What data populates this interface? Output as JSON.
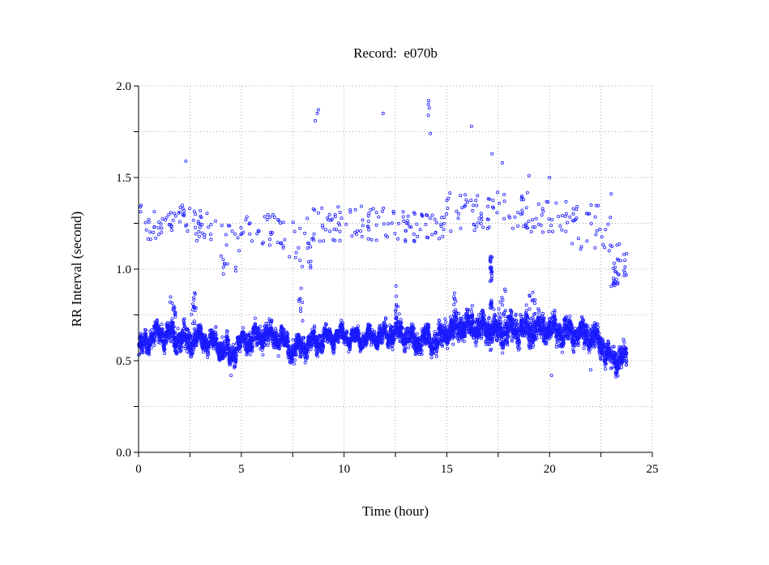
{
  "chart_data": {
    "type": "scatter",
    "title": "Record:  e070b",
    "xlabel": "Time (hour)",
    "ylabel": "RR Interval (second)",
    "xlim": [
      0,
      25
    ],
    "ylim": [
      0.0,
      2.0
    ],
    "xticks": [
      0,
      5,
      10,
      15,
      20,
      25
    ],
    "xtick_labels": [
      "0",
      "5",
      "10",
      "15",
      "20",
      "25"
    ],
    "xminor_step": 2.5,
    "yticks": [
      0.0,
      0.5,
      1.0,
      1.5,
      2.0
    ],
    "ytick_labels": [
      "0.0",
      "0.5",
      "1.0",
      "1.5",
      "2.0"
    ],
    "yminor_step": 0.25,
    "grid": true,
    "marker": "open-circle",
    "color": "#1a1aff",
    "series": [
      {
        "name": "RR intervals",
        "main_band_profile": [
          [
            0,
            0.55,
            0.05
          ],
          [
            0.5,
            0.62,
            0.05
          ],
          [
            1,
            0.65,
            0.05
          ],
          [
            1.5,
            0.64,
            0.05
          ],
          [
            2,
            0.62,
            0.06
          ],
          [
            2.5,
            0.6,
            0.07
          ],
          [
            3,
            0.62,
            0.05
          ],
          [
            3.5,
            0.6,
            0.05
          ],
          [
            4,
            0.58,
            0.06
          ],
          [
            4.5,
            0.53,
            0.06
          ],
          [
            5,
            0.6,
            0.05
          ],
          [
            5.5,
            0.62,
            0.06
          ],
          [
            6,
            0.64,
            0.06
          ],
          [
            6.5,
            0.64,
            0.05
          ],
          [
            7,
            0.62,
            0.05
          ],
          [
            7.5,
            0.55,
            0.06
          ],
          [
            8,
            0.58,
            0.05
          ],
          [
            8.5,
            0.6,
            0.05
          ],
          [
            9,
            0.62,
            0.05
          ],
          [
            9.5,
            0.63,
            0.04
          ],
          [
            10,
            0.64,
            0.04
          ],
          [
            10.5,
            0.62,
            0.04
          ],
          [
            11,
            0.62,
            0.04
          ],
          [
            11.5,
            0.63,
            0.04
          ],
          [
            12,
            0.64,
            0.05
          ],
          [
            12.5,
            0.66,
            0.06
          ],
          [
            13,
            0.64,
            0.05
          ],
          [
            13.5,
            0.6,
            0.06
          ],
          [
            14,
            0.62,
            0.05
          ],
          [
            14.5,
            0.6,
            0.06
          ],
          [
            15,
            0.66,
            0.07
          ],
          [
            15.5,
            0.68,
            0.08
          ],
          [
            16,
            0.7,
            0.07
          ],
          [
            16.5,
            0.68,
            0.07
          ],
          [
            17,
            0.68,
            0.08
          ],
          [
            17.5,
            0.66,
            0.07
          ],
          [
            18,
            0.68,
            0.08
          ],
          [
            18.5,
            0.67,
            0.07
          ],
          [
            19,
            0.66,
            0.08
          ],
          [
            19.5,
            0.68,
            0.07
          ],
          [
            20,
            0.68,
            0.06
          ],
          [
            20.5,
            0.65,
            0.07
          ],
          [
            21,
            0.66,
            0.06
          ],
          [
            21.5,
            0.65,
            0.06
          ],
          [
            22,
            0.64,
            0.06
          ],
          [
            22.5,
            0.6,
            0.07
          ],
          [
            23,
            0.5,
            0.06
          ],
          [
            23.5,
            0.53,
            0.06
          ],
          [
            23.75,
            0.5,
            0.05
          ]
        ],
        "upper_band_segments": [
          [
            0,
            1,
            1.15,
            1.35,
            18
          ],
          [
            1,
            2.5,
            1.2,
            1.35,
            30
          ],
          [
            2.5,
            4,
            1.15,
            1.32,
            25
          ],
          [
            4,
            5,
            0.95,
            1.25,
            20
          ],
          [
            5,
            7,
            1.12,
            1.3,
            30
          ],
          [
            7,
            8.5,
            1.0,
            1.3,
            25
          ],
          [
            8.5,
            10,
            1.15,
            1.35,
            30
          ],
          [
            10,
            12,
            1.15,
            1.35,
            30
          ],
          [
            12,
            14,
            1.15,
            1.32,
            35
          ],
          [
            14,
            15,
            1.15,
            1.32,
            20
          ],
          [
            15,
            17,
            1.2,
            1.42,
            35
          ],
          [
            17,
            19,
            1.22,
            1.42,
            35
          ],
          [
            19,
            21,
            1.2,
            1.38,
            30
          ],
          [
            21,
            22.5,
            1.1,
            1.35,
            25
          ],
          [
            22.5,
            23,
            1.1,
            1.3,
            8
          ],
          [
            23,
            23.8,
            0.9,
            1.15,
            20
          ]
        ],
        "spike_segments": [
          [
            1.5,
            1.8,
            0.7,
            0.9,
            15
          ],
          [
            2.5,
            2.8,
            0.7,
            0.9,
            15
          ],
          [
            7.8,
            8.0,
            0.7,
            0.95,
            8
          ],
          [
            12.5,
            12.7,
            0.75,
            0.92,
            8
          ],
          [
            15.3,
            15.5,
            0.75,
            0.9,
            8
          ],
          [
            17.1,
            17.2,
            0.93,
            1.07,
            25
          ],
          [
            17.1,
            17.2,
            0.78,
            0.83,
            12
          ],
          [
            17.6,
            17.9,
            0.75,
            0.9,
            10
          ],
          [
            19.0,
            19.3,
            0.75,
            0.88,
            10
          ],
          [
            23.1,
            23.4,
            0.9,
            1.0,
            12
          ]
        ],
        "outliers": [
          [
            2.3,
            1.59
          ],
          [
            8.6,
            1.81
          ],
          [
            8.7,
            1.85
          ],
          [
            8.75,
            1.87
          ],
          [
            11.9,
            1.85
          ],
          [
            14.1,
            1.9
          ],
          [
            14.12,
            1.92
          ],
          [
            14.15,
            1.88
          ],
          [
            14.1,
            1.84
          ],
          [
            14.2,
            1.74
          ],
          [
            16.2,
            1.78
          ],
          [
            17.2,
            1.63
          ],
          [
            17.7,
            1.58
          ],
          [
            19.0,
            1.51
          ],
          [
            20.0,
            1.5
          ],
          [
            23.0,
            1.41
          ],
          [
            20.1,
            0.42
          ],
          [
            4.5,
            0.42
          ],
          [
            22.0,
            0.45
          ]
        ]
      }
    ]
  }
}
